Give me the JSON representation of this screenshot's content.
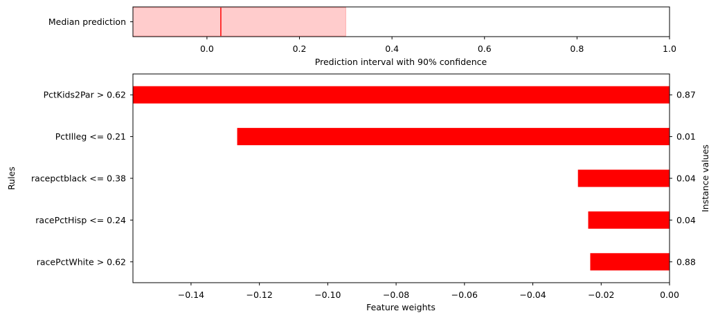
{
  "chart_data": [
    {
      "type": "interval",
      "category": "Median prediction",
      "median": 0.03,
      "interval": [
        -0.16,
        0.3
      ],
      "xlabel": "Prediction interval with 90% confidence",
      "xlim": [
        -0.16,
        1.0
      ],
      "xticks": [
        0.0,
        0.2,
        0.4,
        0.6,
        0.8,
        1.0
      ],
      "xtick_labels": [
        "0.0",
        "0.2",
        "0.4",
        "0.6",
        "0.8",
        "1.0"
      ],
      "colors": {
        "median_line": "#ff0000",
        "interval_fill": "#ffcccc",
        "interval_edge": "#ffaaaa"
      }
    },
    {
      "type": "bar",
      "orientation": "horizontal",
      "categories": [
        "PctKids2Par > 0.62",
        "PctIlleg <= 0.21",
        "racepctblack <= 0.38",
        "racePctHisp <= 0.24",
        "racePctWhite > 0.62"
      ],
      "values": [
        -0.157,
        -0.1265,
        -0.0268,
        -0.0238,
        -0.0232
      ],
      "instance_values": [
        "0.87",
        "0.01",
        "0.04",
        "0.04",
        "0.88"
      ],
      "xlabel": "Feature weights",
      "ylabel": "Rules",
      "ylabel_right": "Instance values",
      "xlim": [
        -0.157,
        0.0
      ],
      "xticks": [
        -0.14,
        -0.12,
        -0.1,
        -0.08,
        -0.06,
        -0.04,
        -0.02,
        0.0
      ],
      "xtick_labels": [
        "−0.14",
        "−0.12",
        "−0.10",
        "−0.08",
        "−0.06",
        "−0.04",
        "−0.02",
        "0.00"
      ],
      "colors": {
        "bar": "#ff0000"
      }
    }
  ]
}
